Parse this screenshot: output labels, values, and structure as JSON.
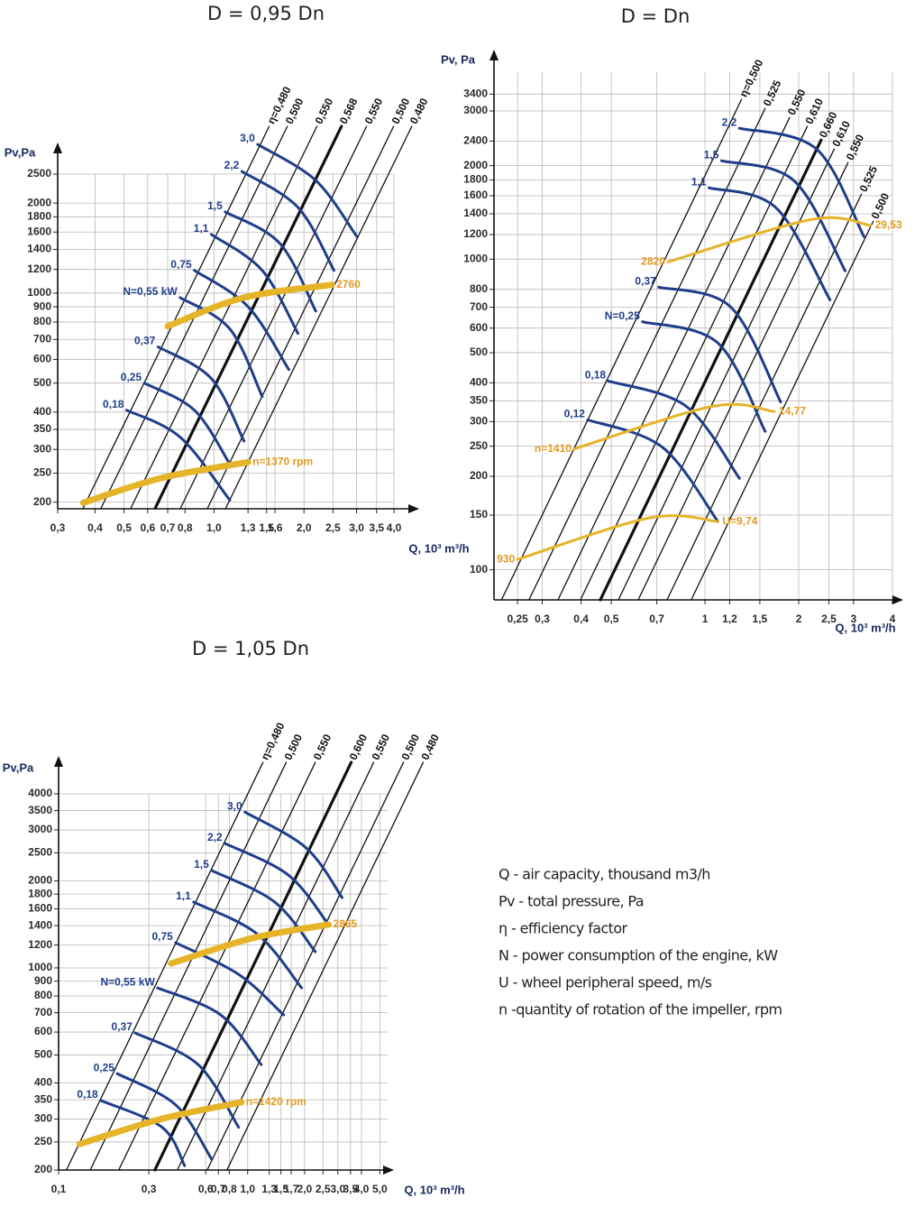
{
  "chart_data": [
    {
      "type": "line",
      "title": "D = 0,95 Dn",
      "y_label": "Pv,Pa",
      "x_label": "Q, 10³ m³/h",
      "log_x": true,
      "log_y": true,
      "grid": true,
      "xlim": [
        0.3,
        4.0
      ],
      "ylim": [
        190,
        2500
      ],
      "xticks": [
        {
          "value": 0.3,
          "label": "0,3"
        },
        {
          "value": 0.4,
          "label": "0,4"
        },
        {
          "value": 0.5,
          "label": "0,5"
        },
        {
          "value": 0.6,
          "label": "0,6"
        },
        {
          "value": 0.7,
          "label": "0,7"
        },
        {
          "value": 0.8,
          "label": "0,8"
        },
        {
          "value": 1.0,
          "label": "1,0"
        },
        {
          "value": 1.3,
          "label": "1,3"
        },
        {
          "value": 1.5,
          "label": "1,5"
        },
        {
          "value": 1.6,
          "label": "1,6"
        },
        {
          "value": 2.0,
          "label": "2,0"
        },
        {
          "value": 2.5,
          "label": "2,5"
        },
        {
          "value": 3.0,
          "label": "3,0"
        },
        {
          "value": 3.5,
          "label": "3,5"
        },
        {
          "value": 4.0,
          "label": "4,0"
        }
      ],
      "yticks": [
        200,
        250,
        300,
        350,
        400,
        500,
        600,
        700,
        800,
        900,
        1000,
        1200,
        1400,
        1600,
        1800,
        2000,
        2500
      ],
      "efficiency_color": "#111111",
      "power_color": "#1f3d8a",
      "speed_color": "#e5b428",
      "efficiency_lines": [
        {
          "name": "η=0,480",
          "x": [
            0.365,
            1.53
          ],
          "y": [
            191,
            3612
          ]
        },
        {
          "name": "0,500",
          "x": [
            0.419,
            1.76
          ],
          "y": [
            191,
            3612
          ]
        },
        {
          "name": "0,550",
          "x": [
            0.527,
            2.21
          ],
          "y": [
            191,
            3612
          ]
        },
        {
          "name": "0,568",
          "x": [
            0.636,
            2.67
          ],
          "y": [
            191,
            3612
          ],
          "bold": true
        },
        {
          "name": "0,550",
          "x": [
            0.773,
            3.24
          ],
          "y": [
            191,
            3612
          ]
        },
        {
          "name": "0,500",
          "x": [
            0.952,
            3.99
          ],
          "y": [
            191,
            3612
          ]
        },
        {
          "name": "0,480",
          "x": [
            1.095,
            4.59
          ],
          "y": [
            191,
            3612
          ]
        }
      ],
      "power_curves": [
        {
          "name": "3,0",
          "x": [
            1.4,
            2.19,
            3.0
          ],
          "y": [
            3143,
            2381,
            1550
          ]
        },
        {
          "name": "2,2",
          "x": [
            1.24,
            1.91,
            2.52
          ],
          "y": [
            2552,
            1934,
            1191
          ]
        },
        {
          "name": "1,5",
          "x": [
            1.09,
            1.66,
            2.19
          ],
          "y": [
            1868,
            1467,
            871
          ]
        },
        {
          "name": "1,1",
          "x": [
            0.98,
            1.45,
            1.91
          ],
          "y": [
            1571,
            1191,
            733
          ]
        },
        {
          "name": "0,75",
          "x": [
            0.86,
            1.3,
            1.78
          ],
          "y": [
            1191,
            901,
            555
          ]
        },
        {
          "name": "N=0,55 kW",
          "x": [
            0.77,
            1.13,
            1.45
          ],
          "y": [
            966,
            759,
            451
          ]
        },
        {
          "name": "0,37",
          "x": [
            0.65,
            0.98,
            1.26
          ],
          "y": [
            661,
            518,
            320
          ]
        },
        {
          "name": "0,25",
          "x": [
            0.585,
            0.86,
            1.13
          ],
          "y": [
            500,
            406,
            268
          ]
        },
        {
          "name": "0,18",
          "x": [
            0.51,
            0.77,
            1.13
          ],
          "y": [
            406,
            330,
            203
          ]
        }
      ],
      "speed_curves": [
        {
          "end_label": "2760",
          "x": [
            0.7,
            1.26,
            2.48
          ],
          "y": [
            775,
            966,
            1066
          ]
        },
        {
          "end_label": "n=1370 rpm",
          "x": [
            0.365,
            0.67,
            1.3
          ],
          "y": [
            199,
            241,
            272
          ]
        }
      ]
    },
    {
      "type": "line",
      "title": "D = Dn",
      "y_label": "Pv, Pa",
      "x_label": "Q, 10³ m³/h",
      "log_x": true,
      "log_y": true,
      "grid": true,
      "xlim": [
        0.21,
        4
      ],
      "ylim": [
        80,
        4000
      ],
      "xticks": [
        {
          "value": 0.25,
          "label": "0,25"
        },
        {
          "value": 0.3,
          "label": "0,3"
        },
        {
          "value": 0.4,
          "label": "0,4"
        },
        {
          "value": 0.5,
          "label": "0,5"
        },
        {
          "value": 0.7,
          "label": "0,7"
        },
        1,
        {
          "value": 1.2,
          "label": "1,2"
        },
        {
          "value": 1.5,
          "label": "1,5"
        },
        2,
        {
          "value": 2.5,
          "label": "2,5"
        },
        3,
        4
      ],
      "yticks": [
        100,
        150,
        200,
        250,
        300,
        350,
        400,
        500,
        600,
        700,
        800,
        1000,
        1200,
        1400,
        1600,
        1800,
        2000,
        2400,
        3000,
        3400
      ],
      "efficiency_color": "#111111",
      "power_color": "#1f3d8a",
      "speed_color": "#e5b428",
      "efficiency_lines": [
        {
          "name": "η=0,500",
          "x": [
            0.222,
            1.31
          ],
          "y": [
            80,
            3270
          ]
        },
        {
          "name": "0,525",
          "x": [
            0.272,
            1.56
          ],
          "y": [
            80,
            3057
          ]
        },
        {
          "name": "0,550",
          "x": [
            0.337,
            1.87
          ],
          "y": [
            80,
            2860
          ]
        },
        {
          "name": "0,610",
          "x": [
            0.398,
            2.13
          ],
          "y": [
            80,
            2675
          ]
        },
        {
          "name": "0,660",
          "x": [
            0.461,
            2.36
          ],
          "y": [
            80,
            2420
          ],
          "bold": true
        },
        {
          "name": "0,610",
          "x": [
            0.527,
            2.6
          ],
          "y": [
            80,
            2263
          ]
        },
        {
          "name": "0,550",
          "x": [
            0.61,
            2.88
          ],
          "y": [
            80,
            2047
          ]
        },
        {
          "name": "0,525",
          "x": [
            0.755,
            3.18
          ],
          "y": [
            80,
            1619
          ]
        },
        {
          "name": "0,500",
          "x": [
            0.903,
            3.47
          ],
          "y": [
            80,
            1325
          ]
        }
      ],
      "power_curves": [
        {
          "name": "2,2",
          "x": [
            1.29,
            2.28,
            3.24
          ],
          "y": [
            2640,
            2263,
            1182
          ]
        },
        {
          "name": "1,5",
          "x": [
            1.13,
            1.93,
            2.82
          ],
          "y": [
            2074,
            1790,
            917
          ]
        },
        {
          "name": "1,1",
          "x": [
            1.03,
            1.69,
            2.52
          ],
          "y": [
            1697,
            1464,
            740
          ]
        },
        {
          "name": "0,37",
          "x": [
            0.71,
            1.21,
            1.75
          ],
          "y": [
            813,
            701,
            347
          ]
        },
        {
          "name": "N=0,25",
          "x": [
            0.63,
            1.1,
            1.56
          ],
          "y": [
            629,
            537,
            279
          ]
        },
        {
          "name": "0,18",
          "x": [
            0.49,
            0.87,
            1.29
          ],
          "y": [
            405,
            336,
            197
          ]
        },
        {
          "name": "0,12",
          "x": [
            0.42,
            0.73,
            1.1
          ],
          "y": [
            304,
            248,
            143
          ]
        }
      ],
      "speed_curves": [
        {
          "start_label": "2820",
          "end_label": "29,53",
          "x": [
            0.76,
            2.2,
            3.4
          ],
          "y": [
            980,
            1342,
            1284
          ]
        },
        {
          "start_label": "n=1410",
          "end_label": "14,77",
          "x": [
            0.38,
            1.06,
            1.67
          ],
          "y": [
            245,
            336,
            323
          ]
        },
        {
          "start_label": "930",
          "end_label": "U=9,74",
          "x": [
            0.25,
            0.665,
            1.1
          ],
          "y": [
            108,
            147,
            143
          ]
        }
      ]
    },
    {
      "type": "line",
      "title": "D = 1,05 Dn",
      "y_label": "Pv,Pa",
      "x_label": "Q, 10³ m³/h",
      "log_x": true,
      "log_y": true,
      "grid": true,
      "xlim": [
        0.1,
        5.5
      ],
      "ylim": [
        200,
        4000
      ],
      "xticks": [
        {
          "value": 0.1,
          "label": "0,1"
        },
        {
          "value": 0.3,
          "label": "0,3"
        },
        {
          "value": 0.6,
          "label": "0,6"
        },
        {
          "value": 0.7,
          "label": "0,7"
        },
        {
          "value": 0.8,
          "label": "0,8"
        },
        {
          "value": 1.0,
          "label": "1,0"
        },
        {
          "value": 1.3,
          "label": "1,3"
        },
        {
          "value": 1.5,
          "label": "1,5"
        },
        {
          "value": 1.7,
          "label": "1,7"
        },
        {
          "value": 2.0,
          "label": "2,0"
        },
        {
          "value": 2.5,
          "label": "2,5"
        },
        {
          "value": 3.0,
          "label": "3,0"
        },
        {
          "value": 3.5,
          "label": "3,5"
        },
        {
          "value": 4.0,
          "label": "4,0"
        },
        {
          "value": 5.0,
          "label": "5,0"
        }
      ],
      "yticks": [
        200,
        250,
        300,
        350,
        400,
        500,
        600,
        700,
        800,
        900,
        1000,
        1200,
        1400,
        1600,
        1800,
        2000,
        2500,
        3000,
        3500,
        4000
      ],
      "efficiency_color": "#111111",
      "power_color": "#1f3d8a",
      "speed_color": "#e5b428",
      "efficiency_lines": [
        {
          "name": "η=0,480",
          "x": [
            0.11,
            1.205
          ],
          "y": [
            200,
            5142
          ]
        },
        {
          "name": "0,500",
          "x": [
            0.147,
            1.6
          ],
          "y": [
            200,
            5142
          ]
        },
        {
          "name": "0,550",
          "x": [
            0.208,
            2.28
          ],
          "y": [
            200,
            5142
          ]
        },
        {
          "name": "0,600",
          "x": [
            0.323,
            3.53
          ],
          "y": [
            200,
            5142
          ],
          "bold": true
        },
        {
          "name": "0,550",
          "x": [
            0.425,
            4.64
          ],
          "y": [
            200,
            5142
          ]
        },
        {
          "name": "0,500",
          "x": [
            0.611,
            6.67
          ],
          "y": [
            200,
            5142
          ]
        },
        {
          "name": "0,480",
          "x": [
            0.777,
            8.48
          ],
          "y": [
            200,
            5142
          ]
        }
      ],
      "power_curves": [
        {
          "name": "3,0",
          "x": [
            0.967,
            2.04,
            3.16
          ],
          "y": [
            3461,
            2600,
            1750
          ]
        },
        {
          "name": "2,2",
          "x": [
            0.76,
            1.64,
            2.68
          ],
          "y": [
            2693,
            2096,
            1412
          ]
        },
        {
          "name": "1,5",
          "x": [
            0.645,
            1.39,
            2.28
          ],
          "y": [
            2173,
            1690,
            1137
          ]
        },
        {
          "name": "1,1",
          "x": [
            0.518,
            1.12,
            1.93
          ],
          "y": [
            1690,
            1312,
            853
          ]
        },
        {
          "name": "0,75",
          "x": [
            0.416,
            0.896,
            1.55
          ],
          "y": [
            1222,
            950,
            688
          ]
        },
        {
          "name": "N=0,55 kW",
          "x": [
            0.334,
            0.72,
            1.18
          ],
          "y": [
            853,
            688,
            463
          ]
        },
        {
          "name": "0,37",
          "x": [
            0.254,
            0.547,
            0.896
          ],
          "y": [
            596,
            463,
            281
          ]
        },
        {
          "name": "0,25",
          "x": [
            0.204,
            0.416,
            0.645
          ],
          "y": [
            431,
            336,
            218
          ]
        },
        {
          "name": "0,18",
          "x": [
            0.167,
            0.353,
            0.464
          ],
          "y": [
            348,
            281,
            207
          ]
        }
      ],
      "speed_curves": [
        {
          "end_label": "2865",
          "x": [
            0.394,
            1.06,
            2.68
          ],
          "y": [
            1036,
            1268,
            1412
          ]
        },
        {
          "end_label": "n=1420 rpm",
          "x": [
            0.129,
            0.353,
            0.926
          ],
          "y": [
            246,
            301,
            343
          ]
        }
      ]
    }
  ],
  "notes": [
    "Q - air capacity, thousand m3/h",
    "Pv - total pressure, Pa",
    "η - efficiency factor",
    "N - power consumption of the engine, kW",
    "U - wheel peripheral speed, m/s",
    "n -quantity of rotation of the impeller, rpm"
  ]
}
